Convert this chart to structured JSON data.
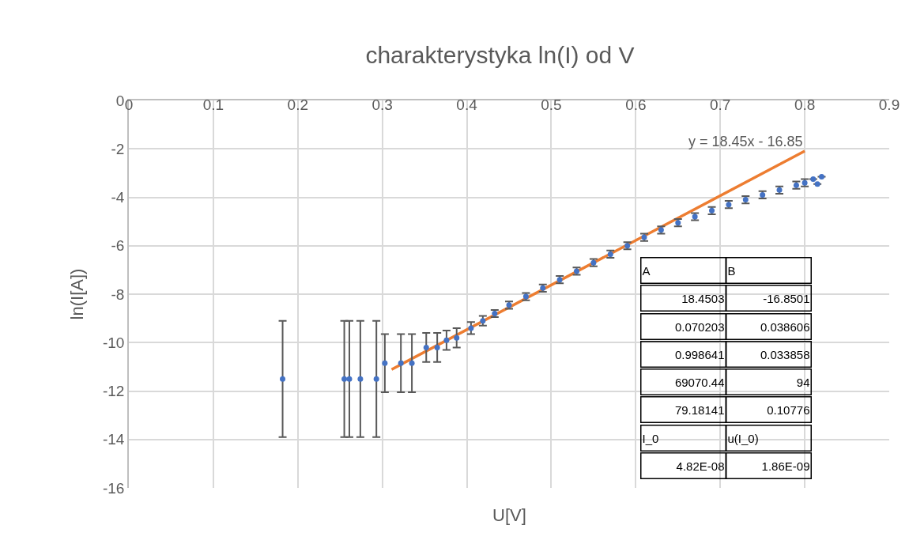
{
  "chart_data": {
    "type": "scatter",
    "title": "charakterystyka ln(I) od V",
    "xlabel": "U[V]",
    "ylabel": "ln(I[A])",
    "xlim": [
      0,
      0.9
    ],
    "xticks": [
      0,
      0.1,
      0.2,
      0.3,
      0.4,
      0.5,
      0.6,
      0.7,
      0.8,
      0.9
    ],
    "ylim": [
      -16,
      0
    ],
    "yticks": [
      -16,
      -14,
      -12,
      -10,
      -8,
      -6,
      -4,
      -2,
      0
    ],
    "grid": true,
    "legend": false,
    "series": [
      {
        "marker": "circle",
        "color": "#4472c4",
        "x": [
          0.182,
          0.255,
          0.261,
          0.274,
          0.293,
          0.303,
          0.322,
          0.335,
          0.352,
          0.365,
          0.376,
          0.388,
          0.405,
          0.419,
          0.433,
          0.45,
          0.47,
          0.49,
          0.51,
          0.53,
          0.55,
          0.57,
          0.59,
          0.61,
          0.63,
          0.65,
          0.67,
          0.69,
          0.71,
          0.73,
          0.75,
          0.77,
          0.79,
          0.8,
          0.81,
          0.815,
          0.82
        ],
        "values": [
          -11.5,
          -11.5,
          -11.5,
          -11.5,
          -11.5,
          -10.85,
          -10.85,
          -10.85,
          -10.2,
          -10.2,
          -9.9,
          -9.8,
          -9.4,
          -9.1,
          -8.8,
          -8.45,
          -8.1,
          -7.75,
          -7.4,
          -7.05,
          -6.7,
          -6.35,
          -6.0,
          -5.65,
          -5.35,
          -5.05,
          -4.8,
          -4.55,
          -4.3,
          -4.1,
          -3.9,
          -3.7,
          -3.5,
          -3.4,
          -3.25,
          -3.45,
          -3.15
        ],
        "errors": [
          2.4,
          2.4,
          2.4,
          2.4,
          2.4,
          1.2,
          1.2,
          1.2,
          0.6,
          0.6,
          0.4,
          0.4,
          0.25,
          0.2,
          0.15,
          0.15,
          0.15,
          0.15,
          0.15,
          0.15,
          0.15,
          0.15,
          0.15,
          0.15,
          0.15,
          0.15,
          0.15,
          0.15,
          0.15,
          0.15,
          0.15,
          0.15,
          0.15,
          0.15,
          null,
          null,
          null
        ]
      },
      {
        "type": "line",
        "color": "#ed7d31",
        "x": [
          0.311,
          0.8
        ],
        "values": [
          -11.11,
          -2.09
        ]
      }
    ],
    "annotations": [
      {
        "text": "y = 18.45x - 16.85",
        "x": 0.8,
        "y": -2.09
      },
      "A",
      "B",
      "18.4503",
      "-16.8501",
      "0.070203",
      "0.038606",
      "0.998641",
      "0.033858",
      "69070.44",
      "94",
      "79.18141",
      "0.10776",
      "I_0",
      "u(I_0)",
      "4.82E-08",
      "1.86E-09"
    ]
  }
}
